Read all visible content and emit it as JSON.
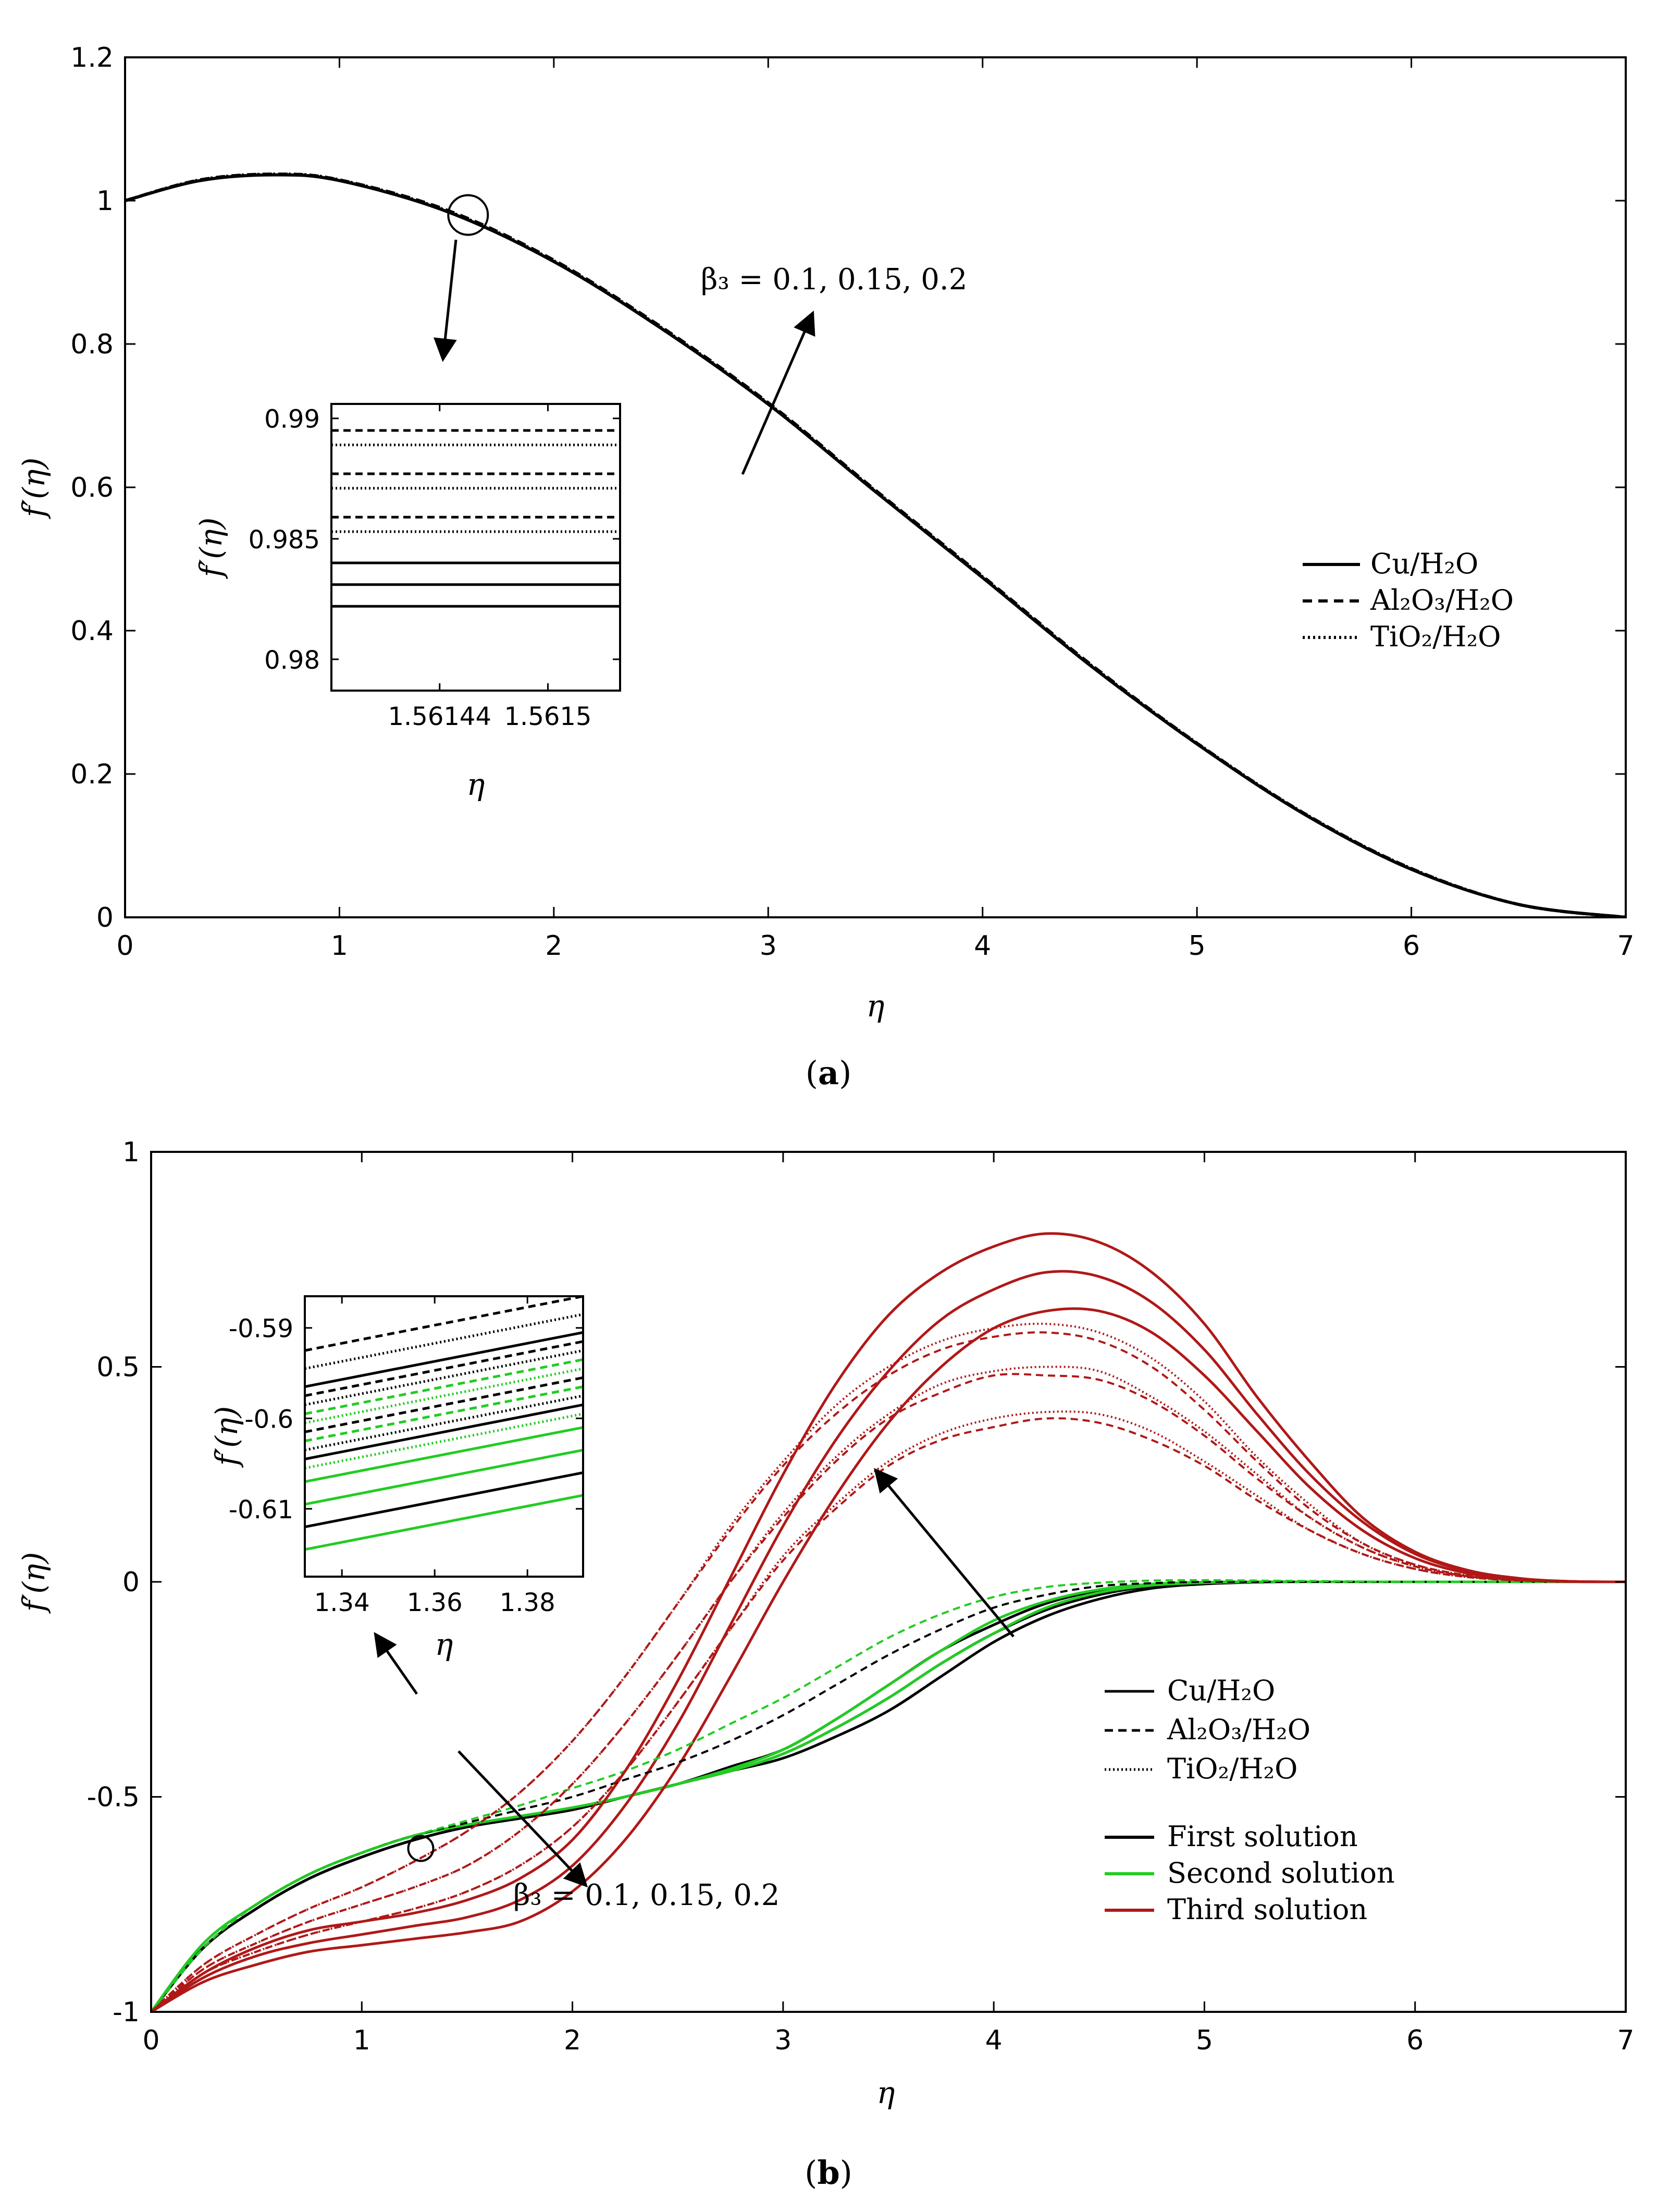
{
  "panels": {
    "a": {
      "caption_label": "a",
      "annotation": "β₃ = 0.1, 0.15, 0.2",
      "legend": [
        "Cu/H₂O",
        "Al₂O₃/H₂O",
        "TiO₂/H₂O"
      ],
      "inset_xlabel": "η",
      "inset_ylabel": "f′(η)"
    },
    "b": {
      "caption_label": "b",
      "annotation": "β₃ = 0.1, 0.15, 0.2",
      "legend_fluids": [
        "Cu/H₂O",
        "Al₂O₃/H₂O",
        "TiO₂/H₂O"
      ],
      "legend_solutions": [
        "First solution",
        "Second solution",
        "Third solution"
      ],
      "inset_xlabel": "η",
      "inset_ylabel": "f′(η)"
    }
  },
  "colors": {
    "first": "#000000",
    "second": "#22cc22",
    "third": "#b01818"
  },
  "chart_data": [
    {
      "id": "a",
      "type": "line",
      "xlabel": "η",
      "ylabel": "f′(η)",
      "xlim": [
        0,
        7
      ],
      "ylim": [
        0,
        1.2
      ],
      "xticks": [
        0,
        1,
        2,
        3,
        4,
        5,
        6,
        7
      ],
      "yticks": [
        0,
        0.2,
        0.4,
        0.6,
        0.8,
        1,
        1.2
      ],
      "ytick_labels": [
        "0",
        "0.2",
        "0.4",
        "0.6",
        "0.8",
        "1",
        "1.2"
      ],
      "x": [
        0,
        0.35,
        0.7,
        1.0,
        1.5,
        2.0,
        2.5,
        3.0,
        3.5,
        4.0,
        4.5,
        5.0,
        5.5,
        6.0,
        6.5,
        7.0
      ],
      "series": [
        {
          "name": "Cu/H₂O",
          "style": "solid",
          "values": [
            1.0,
            1.028,
            1.036,
            1.028,
            0.985,
            0.915,
            0.822,
            0.716,
            0.594,
            0.474,
            0.352,
            0.242,
            0.144,
            0.067,
            0.018,
            0.0
          ]
        },
        {
          "name": "Al₂O₃/H₂O",
          "style": "dashed",
          "values": [
            1.0,
            1.029,
            1.037,
            1.029,
            0.987,
            0.917,
            0.824,
            0.718,
            0.596,
            0.476,
            0.354,
            0.243,
            0.145,
            0.068,
            0.018,
            0.0
          ]
        },
        {
          "name": "TiO₂/H₂O",
          "style": "dotted",
          "values": [
            1.0,
            1.029,
            1.037,
            1.029,
            0.986,
            0.916,
            0.823,
            0.717,
            0.595,
            0.475,
            0.353,
            0.243,
            0.145,
            0.068,
            0.018,
            0.0
          ]
        }
      ],
      "inset": {
        "xlim": [
          1.56138,
          1.56154
        ],
        "ylim": [
          0.9787,
          0.9906
        ],
        "xticks": [
          1.56144,
          1.5615
        ],
        "xtick_labels": [
          "1.56144",
          "1.5615"
        ],
        "yticks": [
          0.98,
          0.985,
          0.99
        ],
        "ytick_labels": [
          "0.98",
          "0.985",
          "0.99"
        ],
        "series": [
          {
            "name": "Cu/H₂O β₃=0.1",
            "style": "solid",
            "y0": 0.9822,
            "y1": 0.9822
          },
          {
            "name": "Cu/H₂O β₃=0.15",
            "style": "solid",
            "y0": 0.9831,
            "y1": 0.9831
          },
          {
            "name": "Cu/H₂O β₃=0.2",
            "style": "solid",
            "y0": 0.984,
            "y1": 0.984
          },
          {
            "name": "TiO₂/H₂O β₃=0.1",
            "style": "dotted",
            "y0": 0.9853,
            "y1": 0.9853
          },
          {
            "name": "Al₂O₃/H₂O β₃=0.1",
            "style": "dashed",
            "y0": 0.9859,
            "y1": 0.9859
          },
          {
            "name": "TiO₂/H₂O β₃=0.15",
            "style": "dotted",
            "y0": 0.9871,
            "y1": 0.9871
          },
          {
            "name": "Al₂O₃/H₂O β₃=0.15",
            "style": "dashed",
            "y0": 0.9877,
            "y1": 0.9877
          },
          {
            "name": "TiO₂/H₂O β₃=0.2",
            "style": "dotted",
            "y0": 0.9889,
            "y1": 0.9889
          },
          {
            "name": "Al₂O₃/H₂O β₃=0.2",
            "style": "dashed",
            "y0": 0.9895,
            "y1": 0.9895
          }
        ]
      },
      "zoom_circle": {
        "x": 1.6,
        "y": 0.98
      }
    },
    {
      "id": "b",
      "type": "line",
      "xlabel": "η",
      "ylabel": "f′(η)",
      "xlim": [
        0,
        7
      ],
      "ylim": [
        -1,
        1
      ],
      "xticks": [
        0,
        1,
        2,
        3,
        4,
        5,
        6,
        7
      ],
      "yticks": [
        -1,
        -0.5,
        0,
        0.5,
        1
      ],
      "ytick_labels": [
        "-1",
        "-0.5",
        "0",
        "0.5",
        "1"
      ],
      "x": [
        0,
        0.25,
        0.5,
        0.75,
        1.0,
        1.25,
        1.5,
        1.75,
        2.0,
        2.25,
        2.5,
        2.75,
        3.0,
        3.25,
        3.5,
        3.75,
        4.0,
        4.25,
        4.5,
        4.75,
        5.0,
        5.25,
        5.5,
        5.75,
        6.0,
        6.25,
        6.5,
        6.75,
        7.0
      ],
      "series": [
        {
          "name": "Cu/H₂O first 0.1",
          "solution": "first",
          "style": "solid",
          "values": [
            -1,
            -0.85,
            -0.76,
            -0.69,
            -0.64,
            -0.6,
            -0.57,
            -0.55,
            -0.53,
            -0.5,
            -0.47,
            -0.44,
            -0.41,
            -0.36,
            -0.3,
            -0.22,
            -0.14,
            -0.08,
            -0.04,
            -0.015,
            -0.005,
            -0.001,
            0,
            0,
            0,
            0,
            0,
            0,
            0
          ]
        },
        {
          "name": "Cu/H₂O first 0.15",
          "solution": "first",
          "style": "solid",
          "values": [
            -1,
            -0.85,
            -0.76,
            -0.69,
            -0.64,
            -0.6,
            -0.57,
            -0.55,
            -0.53,
            -0.5,
            -0.47,
            -0.44,
            -0.4,
            -0.34,
            -0.27,
            -0.19,
            -0.12,
            -0.065,
            -0.03,
            -0.01,
            -0.003,
            0,
            0,
            0,
            0,
            0,
            0,
            0,
            0
          ]
        },
        {
          "name": "Cu/H₂O first 0.2",
          "solution": "first",
          "style": "solid",
          "values": [
            -1,
            -0.85,
            -0.76,
            -0.69,
            -0.64,
            -0.6,
            -0.57,
            -0.55,
            -0.53,
            -0.5,
            -0.47,
            -0.43,
            -0.39,
            -0.32,
            -0.24,
            -0.16,
            -0.1,
            -0.05,
            -0.02,
            -0.006,
            -0.001,
            0,
            0,
            0,
            0,
            0,
            0,
            0,
            0
          ]
        },
        {
          "name": "Cu/H₂O second 0.1",
          "solution": "second",
          "style": "solid",
          "values": [
            -1,
            -0.84,
            -0.75,
            -0.68,
            -0.63,
            -0.59,
            -0.565,
            -0.545,
            -0.525,
            -0.5,
            -0.47,
            -0.44,
            -0.4,
            -0.34,
            -0.27,
            -0.19,
            -0.12,
            -0.06,
            -0.025,
            -0.008,
            -0.002,
            0,
            0,
            0,
            0,
            0,
            0,
            0,
            0
          ]
        },
        {
          "name": "Cu/H₂O second 0.15",
          "solution": "second",
          "style": "solid",
          "values": [
            -1,
            -0.84,
            -0.75,
            -0.68,
            -0.63,
            -0.59,
            -0.565,
            -0.545,
            -0.525,
            -0.5,
            -0.47,
            -0.435,
            -0.39,
            -0.32,
            -0.24,
            -0.16,
            -0.09,
            -0.045,
            -0.018,
            -0.005,
            -0.001,
            0,
            0,
            0,
            0,
            0,
            0,
            0,
            0
          ]
        },
        {
          "name": "Cu/H₂O third 0.1",
          "solution": "third",
          "style": "solid",
          "values": [
            -1,
            -0.93,
            -0.89,
            -0.86,
            -0.845,
            -0.83,
            -0.815,
            -0.79,
            -0.72,
            -0.6,
            -0.43,
            -0.22,
            0.0,
            0.2,
            0.37,
            0.5,
            0.59,
            0.63,
            0.63,
            0.58,
            0.48,
            0.35,
            0.22,
            0.12,
            0.055,
            0.02,
            0.006,
            0.001,
            0
          ]
        },
        {
          "name": "Cu/H₂O third 0.15",
          "solution": "third",
          "style": "solid",
          "values": [
            -1,
            -0.92,
            -0.87,
            -0.84,
            -0.82,
            -0.8,
            -0.78,
            -0.74,
            -0.66,
            -0.52,
            -0.33,
            -0.1,
            0.13,
            0.33,
            0.49,
            0.61,
            0.68,
            0.72,
            0.71,
            0.65,
            0.54,
            0.39,
            0.25,
            0.14,
            0.065,
            0.025,
            0.007,
            0.001,
            0
          ]
        },
        {
          "name": "Cu/H₂O third 0.2",
          "solution": "third",
          "style": "solid",
          "values": [
            -1,
            -0.91,
            -0.85,
            -0.81,
            -0.79,
            -0.77,
            -0.74,
            -0.69,
            -0.6,
            -0.44,
            -0.23,
            0.01,
            0.25,
            0.46,
            0.62,
            0.72,
            0.78,
            0.81,
            0.79,
            0.72,
            0.6,
            0.43,
            0.28,
            0.15,
            0.07,
            0.027,
            0.008,
            0.001,
            0
          ]
        },
        {
          "name": "Al₂O₃/H₂O first 0.1",
          "solution": "first",
          "style": "dashed",
          "values": [
            -1,
            -0.85,
            -0.75,
            -0.68,
            -0.63,
            -0.59,
            -0.56,
            -0.53,
            -0.5,
            -0.46,
            -0.42,
            -0.37,
            -0.31,
            -0.24,
            -0.17,
            -0.11,
            -0.06,
            -0.03,
            -0.01,
            -0.003,
            0,
            0,
            0,
            0,
            0,
            0,
            0,
            0,
            0
          ]
        },
        {
          "name": "Al₂O₃/H₂O second 0.1",
          "solution": "second",
          "style": "dashed",
          "values": [
            -1,
            -0.85,
            -0.75,
            -0.68,
            -0.63,
            -0.59,
            -0.555,
            -0.52,
            -0.48,
            -0.44,
            -0.39,
            -0.33,
            -0.27,
            -0.2,
            -0.13,
            -0.075,
            -0.035,
            -0.012,
            -0.002,
            0.003,
            0.004,
            0.003,
            0.002,
            0.001,
            0,
            0,
            0,
            0,
            0
          ]
        },
        {
          "name": "Al₂O₃/H₂O third 0.1",
          "solution": "third",
          "style": "dashed",
          "values": [
            -1,
            -0.91,
            -0.86,
            -0.82,
            -0.79,
            -0.76,
            -0.72,
            -0.66,
            -0.57,
            -0.44,
            -0.28,
            -0.11,
            0.05,
            0.17,
            0.27,
            0.33,
            0.36,
            0.38,
            0.37,
            0.33,
            0.27,
            0.19,
            0.12,
            0.065,
            0.03,
            0.011,
            0.003,
            0,
            0
          ]
        },
        {
          "name": "Al₂O₃/H₂O third 0.15",
          "solution": "third",
          "style": "dashed",
          "values": [
            -1,
            -0.9,
            -0.84,
            -0.79,
            -0.75,
            -0.71,
            -0.66,
            -0.58,
            -0.47,
            -0.33,
            -0.17,
            0.0,
            0.15,
            0.28,
            0.38,
            0.44,
            0.48,
            0.48,
            0.47,
            0.42,
            0.34,
            0.24,
            0.15,
            0.08,
            0.036,
            0.013,
            0.004,
            0,
            0
          ]
        },
        {
          "name": "Al₂O₃/H₂O third 0.2",
          "solution": "third",
          "style": "dashed",
          "values": [
            -1,
            -0.89,
            -0.82,
            -0.76,
            -0.71,
            -0.65,
            -0.58,
            -0.49,
            -0.37,
            -0.22,
            -0.05,
            0.12,
            0.27,
            0.39,
            0.48,
            0.54,
            0.57,
            0.58,
            0.56,
            0.5,
            0.4,
            0.28,
            0.17,
            0.09,
            0.04,
            0.015,
            0.004,
            0,
            0
          ]
        },
        {
          "name": "TiO₂/H₂O third 0.1",
          "solution": "third",
          "style": "dotted",
          "values": [
            -1,
            -0.91,
            -0.86,
            -0.82,
            -0.79,
            -0.76,
            -0.72,
            -0.66,
            -0.57,
            -0.44,
            -0.28,
            -0.11,
            0.06,
            0.18,
            0.28,
            0.345,
            0.38,
            0.395,
            0.39,
            0.35,
            0.28,
            0.2,
            0.12,
            0.065,
            0.03,
            0.011,
            0.003,
            0,
            0
          ]
        },
        {
          "name": "TiO₂/H₂O third 0.15",
          "solution": "third",
          "style": "dotted",
          "values": [
            -1,
            -0.9,
            -0.84,
            -0.79,
            -0.75,
            -0.71,
            -0.66,
            -0.58,
            -0.47,
            -0.33,
            -0.17,
            0.0,
            0.16,
            0.29,
            0.39,
            0.46,
            0.49,
            0.5,
            0.49,
            0.43,
            0.35,
            0.25,
            0.15,
            0.08,
            0.036,
            0.013,
            0.004,
            0,
            0
          ]
        },
        {
          "name": "TiO₂/H₂O third 0.2",
          "solution": "third",
          "style": "dotted",
          "values": [
            -1,
            -0.89,
            -0.82,
            -0.76,
            -0.71,
            -0.65,
            -0.58,
            -0.49,
            -0.37,
            -0.22,
            -0.05,
            0.13,
            0.28,
            0.41,
            0.5,
            0.56,
            0.59,
            0.6,
            0.58,
            0.52,
            0.42,
            0.29,
            0.18,
            0.09,
            0.04,
            0.015,
            0.004,
            0,
            0
          ]
        }
      ],
      "inset": {
        "xlim": [
          1.332,
          1.392
        ],
        "ylim": [
          -0.6175,
          -0.5865
        ],
        "xticks": [
          1.34,
          1.36,
          1.38
        ],
        "xtick_labels": [
          "1.34",
          "1.36",
          "1.38"
        ],
        "yticks": [
          -0.61,
          -0.6,
          -0.59
        ],
        "ytick_labels": [
          "-0.61",
          "-0.6",
          "-0.59"
        ],
        "series": [
          {
            "style": "dashed",
            "solution": "first",
            "y0": -0.5925,
            "y1": -0.5865
          },
          {
            "style": "dotted",
            "solution": "first",
            "y0": -0.5945,
            "y1": -0.5885
          },
          {
            "style": "solid",
            "solution": "first",
            "y0": -0.5965,
            "y1": -0.5905
          },
          {
            "style": "dashed",
            "solution": "first",
            "y0": -0.5975,
            "y1": -0.5915
          },
          {
            "style": "dotted",
            "solution": "first",
            "y0": -0.5985,
            "y1": -0.5925
          },
          {
            "style": "dashed",
            "solution": "second",
            "y0": -0.5995,
            "y1": -0.5935
          },
          {
            "style": "dotted",
            "solution": "second",
            "y0": -0.6005,
            "y1": -0.5945
          },
          {
            "style": "dashed",
            "solution": "first",
            "y0": -0.6015,
            "y1": -0.5955
          },
          {
            "style": "dashed",
            "solution": "second",
            "y0": -0.6025,
            "y1": -0.5965
          },
          {
            "style": "dotted",
            "solution": "first",
            "y0": -0.6035,
            "y1": -0.5975
          },
          {
            "style": "solid",
            "solution": "first",
            "y0": -0.6045,
            "y1": -0.5985
          },
          {
            "style": "dotted",
            "solution": "second",
            "y0": -0.6055,
            "y1": -0.5995
          },
          {
            "style": "solid",
            "solution": "second",
            "y0": -0.607,
            "y1": -0.601
          },
          {
            "style": "solid",
            "solution": "second",
            "y0": -0.6095,
            "y1": -0.6035
          },
          {
            "style": "solid",
            "solution": "first",
            "y0": -0.612,
            "y1": -0.606
          },
          {
            "style": "solid",
            "solution": "second",
            "y0": -0.6145,
            "y1": -0.6085
          }
        ]
      },
      "zoom_circle": {
        "x": 1.28,
        "y": -0.62
      }
    }
  ]
}
